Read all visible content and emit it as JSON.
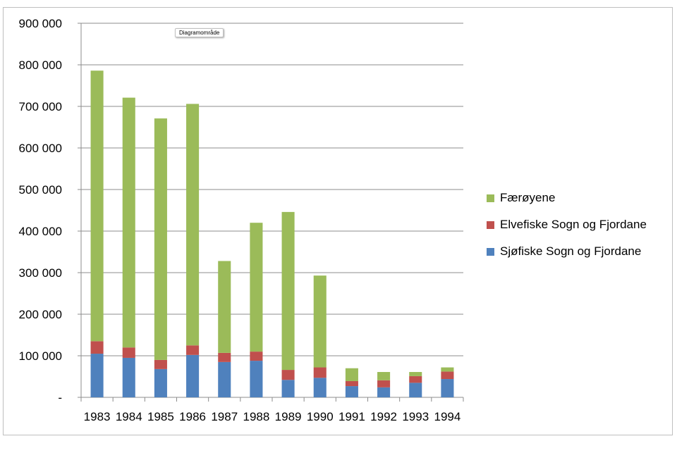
{
  "tooltip": "Diagramområde",
  "chart_data": {
    "type": "bar",
    "stacked": true,
    "categories": [
      "1983",
      "1984",
      "1985",
      "1986",
      "1987",
      "1988",
      "1989",
      "1990",
      "1991",
      "1992",
      "1993",
      "1994"
    ],
    "series": [
      {
        "name": "Sjøfiske Sogn og Fjordane",
        "color": "#4f81bd",
        "values": [
          105000,
          95000,
          68000,
          102000,
          85000,
          88000,
          42000,
          47000,
          27000,
          24000,
          35000,
          44000
        ]
      },
      {
        "name": "Elvefiske Sogn og Fjordane",
        "color": "#c0504d",
        "values": [
          30000,
          25000,
          22000,
          23000,
          22000,
          22000,
          24000,
          25000,
          12000,
          17000,
          16000,
          18000
        ]
      },
      {
        "name": "Færøyene",
        "color": "#9bbb59",
        "values": [
          651000,
          601000,
          581000,
          581000,
          221000,
          310000,
          380000,
          221000,
          31000,
          20000,
          10000,
          10000
        ]
      }
    ],
    "ylim": [
      0,
      900000
    ],
    "yticks": [
      0,
      100000,
      200000,
      300000,
      400000,
      500000,
      600000,
      700000,
      800000,
      900000
    ],
    "ytick_labels": [
      "-",
      "100 000",
      "200 000",
      "300 000",
      "400 000",
      "500 000",
      "600 000",
      "700 000",
      "800 000",
      "900 000"
    ],
    "legend_position": "right",
    "legend_order": [
      "Færøyene",
      "Elvefiske Sogn og Fjordane",
      "Sjøfiske Sogn og Fjordane"
    ],
    "grid": true,
    "title": "",
    "xlabel": "",
    "ylabel": ""
  }
}
